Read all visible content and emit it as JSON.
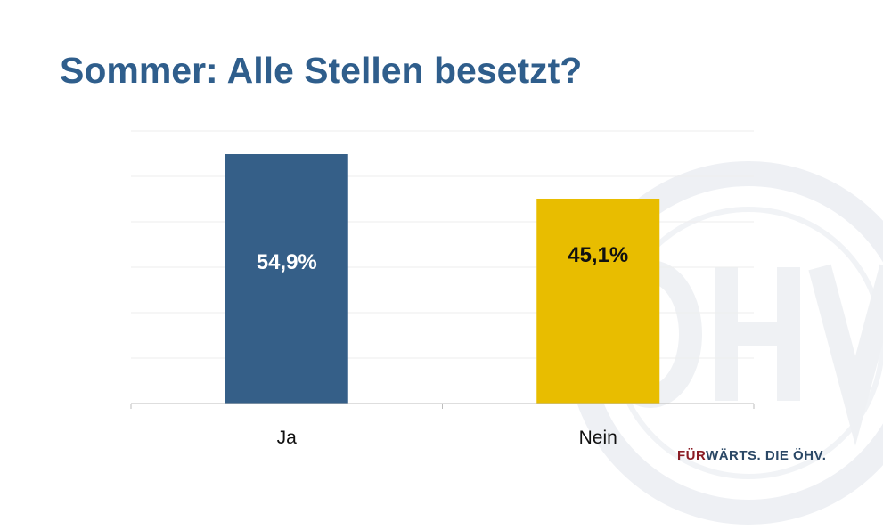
{
  "title": "Sommer: Alle Stellen besetzt?",
  "footer": {
    "highlight": "FÜR",
    "rest": "WÄRTS. DIE ÖHV."
  },
  "watermark_text": "ÖHV",
  "colors": {
    "title": "#2f5e8c",
    "ja": "#355f88",
    "nein": "#e8bd00",
    "footer_red": "#8a1c24"
  },
  "chart_data": {
    "type": "bar",
    "title": "Sommer: Alle Stellen besetzt?",
    "categories": [
      "Ja",
      "Nein"
    ],
    "values": [
      54.9,
      45.1
    ],
    "data_labels": [
      "54,9%",
      "45,1%"
    ],
    "bar_colors": [
      "#355f88",
      "#e8bd00"
    ],
    "label_colors": [
      "#ffffff",
      "#111111"
    ],
    "xlabel": "",
    "ylabel": "",
    "ylim": [
      0,
      60
    ],
    "grid": true,
    "gridlines": [
      10,
      20,
      30,
      40,
      50,
      60
    ]
  }
}
